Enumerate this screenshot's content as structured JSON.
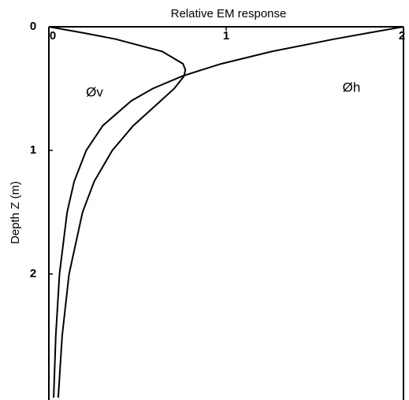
{
  "chart_data": {
    "type": "line",
    "xlabel": "Relative EM response",
    "ylabel": "Depth Z (m)",
    "x": [
      0,
      0.05,
      0.1,
      0.2,
      0.3,
      0.35,
      0.4,
      0.5,
      0.6,
      0.8,
      1.0,
      1.25,
      1.5,
      2,
      2.5,
      3
    ],
    "series": [
      {
        "name": "Øv",
        "color": "#000000",
        "values": [
          0,
          0.197,
          0.377,
          0.64,
          0.757,
          0.77,
          0.762,
          0.707,
          0.63,
          0.476,
          0.358,
          0.256,
          0.19,
          0.114,
          0.075,
          0.053
        ]
      },
      {
        "name": "Øh",
        "color": "#000000",
        "values": [
          2,
          1.801,
          1.608,
          1.257,
          0.971,
          0.86,
          0.751,
          0.586,
          0.464,
          0.304,
          0.211,
          0.143,
          0.103,
          0.06,
          0.039,
          0.027
        ]
      }
    ],
    "xlim": [
      0,
      2
    ],
    "xticks": [
      0,
      1,
      2
    ],
    "ylim": [
      0,
      3
    ],
    "yticks": [
      0,
      1,
      2
    ]
  }
}
